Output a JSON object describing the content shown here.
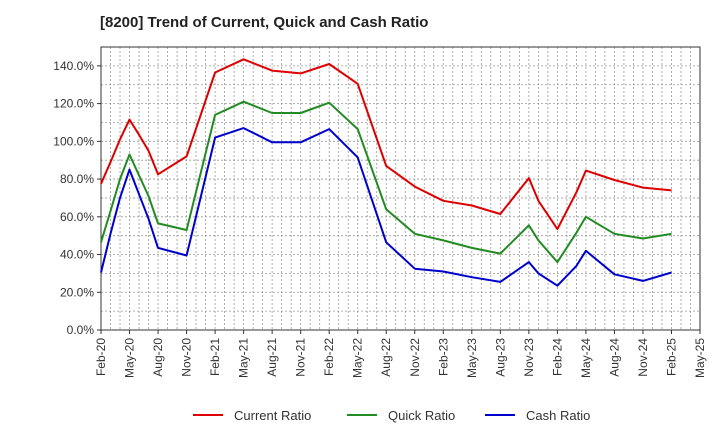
{
  "chart_data": {
    "type": "line",
    "title": "[8200]  Trend of Current, Quick and Cash Ratio",
    "xlabel": "",
    "ylabel": "",
    "ylim": [
      0,
      150
    ],
    "yticks": [
      0,
      20,
      40,
      60,
      80,
      100,
      120,
      140
    ],
    "ytick_labels": [
      "0.0%",
      "20.0%",
      "40.0%",
      "60.0%",
      "80.0%",
      "100.0%",
      "120.0%",
      "140.0%"
    ],
    "xlim": [
      0,
      63
    ],
    "xtick_positions": [
      0,
      3,
      6,
      9,
      12,
      15,
      18,
      21,
      24,
      27,
      30,
      33,
      36,
      39,
      42,
      45,
      48,
      51,
      54,
      57,
      60,
      63
    ],
    "xtick_labels": [
      "Feb-20",
      "May-20",
      "Aug-20",
      "Nov-20",
      "Feb-21",
      "May-21",
      "Aug-21",
      "Nov-21",
      "Feb-22",
      "May-22",
      "Aug-22",
      "Nov-22",
      "Feb-23",
      "May-23",
      "Aug-23",
      "Nov-23",
      "Feb-24",
      "May-24",
      "Aug-24",
      "Nov-24",
      "Feb-25",
      "May-25"
    ],
    "grid": true,
    "legend_position": "bottom",
    "series": [
      {
        "name": "Current Ratio",
        "color": "#dd0000",
        "x": [
          0,
          1,
          2,
          3,
          4,
          5,
          6,
          9,
          12,
          15,
          18,
          21,
          24,
          27,
          30,
          33,
          36,
          39,
          42,
          45,
          46,
          48,
          50,
          51,
          54,
          57,
          60
        ],
        "values": [
          77.5,
          89.0,
          101.0,
          111.5,
          103.5,
          95.0,
          82.5,
          92.0,
          136.5,
          143.5,
          137.5,
          136.0,
          141.0,
          130.5,
          87.0,
          76.0,
          68.5,
          66.0,
          61.5,
          80.5,
          68.5,
          53.5,
          73.0,
          84.5,
          79.5,
          75.5,
          74.0
        ]
      },
      {
        "name": "Quick Ratio",
        "color": "#228b22",
        "x": [
          0,
          1,
          2,
          3,
          4,
          5,
          6,
          9,
          12,
          15,
          18,
          21,
          24,
          27,
          30,
          33,
          36,
          39,
          42,
          45,
          46,
          48,
          50,
          51,
          54,
          57,
          60
        ],
        "values": [
          46.5,
          63.0,
          80.0,
          93.0,
          82.0,
          71.0,
          56.5,
          53.0,
          114.0,
          121.0,
          115.0,
          115.0,
          120.5,
          106.5,
          64.0,
          51.0,
          47.5,
          43.5,
          40.5,
          55.5,
          47.5,
          36.0,
          51.5,
          60.0,
          51.0,
          48.5,
          51.0
        ]
      },
      {
        "name": "Cash Ratio",
        "color": "#0000cc",
        "x": [
          0,
          1,
          2,
          3,
          4,
          5,
          6,
          9,
          12,
          15,
          18,
          21,
          24,
          27,
          30,
          33,
          36,
          39,
          42,
          45,
          46,
          48,
          50,
          51,
          54,
          57,
          60
        ],
        "values": [
          30.5,
          51.0,
          70.0,
          85.0,
          72.0,
          59.0,
          43.5,
          39.5,
          102.0,
          107.0,
          99.5,
          99.5,
          106.5,
          91.5,
          46.5,
          32.5,
          31.0,
          28.0,
          25.5,
          36.0,
          30.0,
          23.5,
          34.0,
          42.0,
          29.5,
          26.0,
          30.5
        ]
      }
    ]
  }
}
